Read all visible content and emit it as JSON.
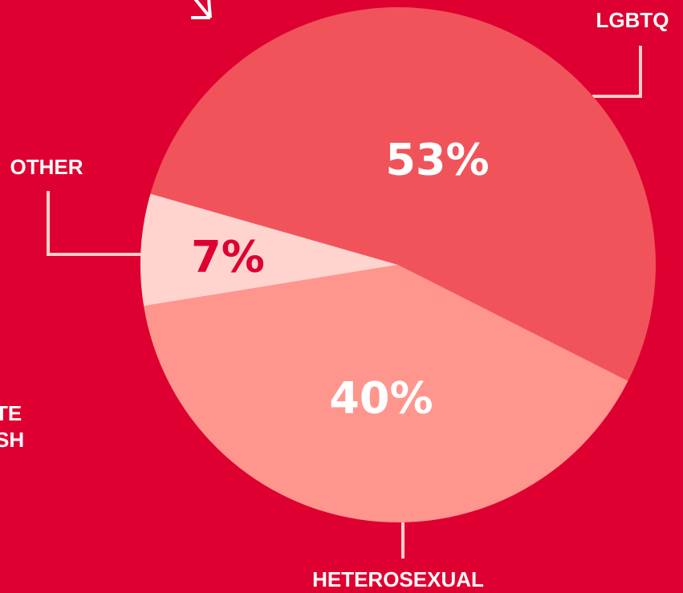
{
  "chart_data": {
    "type": "pie",
    "categories": [
      "LGBTQ",
      "HETEROSEXUAL",
      "OTHER"
    ],
    "values": [
      53,
      40,
      7
    ],
    "value_labels": [
      "53%",
      "40%",
      "7%"
    ],
    "colors": [
      "#f0545a",
      "#ff968e",
      "#ffd4cf"
    ],
    "annotations": [
      "TE",
      "SH"
    ]
  }
}
